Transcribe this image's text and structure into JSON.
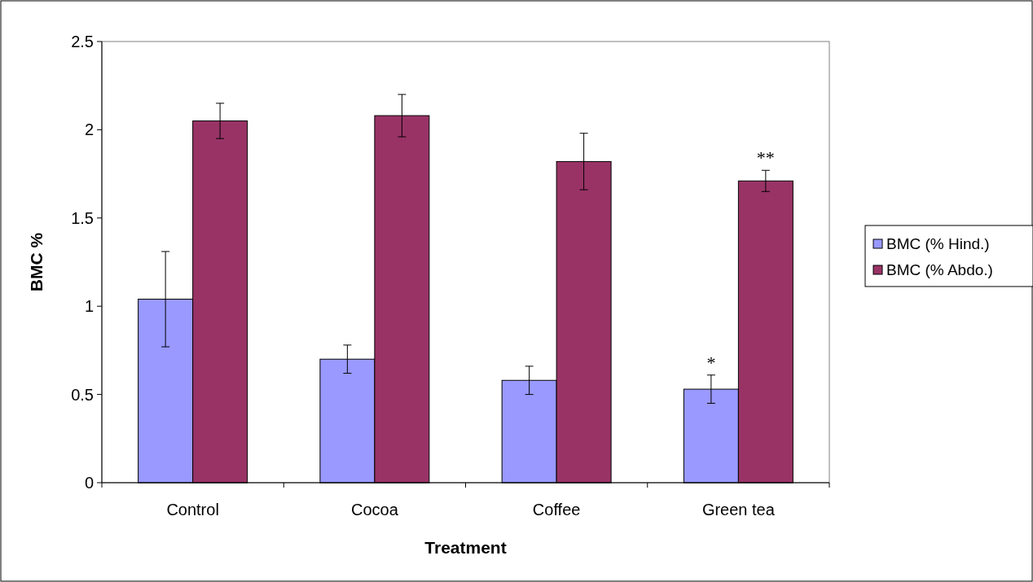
{
  "chart_data": {
    "type": "bar",
    "xlabel": "Treatment",
    "ylabel": "BMC %",
    "categories": [
      "Control",
      "Cocoa",
      "Coffee",
      "Green tea"
    ],
    "series": [
      {
        "name": "BMC (% Hind.)",
        "color": "#9999ff",
        "values": [
          1.04,
          0.7,
          0.58,
          0.53
        ],
        "errors": [
          0.27,
          0.08,
          0.08,
          0.08
        ]
      },
      {
        "name": "BMC (% Abdo.)",
        "color": "#993366",
        "values": [
          2.05,
          2.08,
          1.82,
          1.71
        ],
        "errors": [
          0.1,
          0.12,
          0.16,
          0.06
        ]
      }
    ],
    "ylim": [
      0,
      2.5
    ],
    "yticks": [
      0,
      0.5,
      1,
      1.5,
      2,
      2.5
    ],
    "grid": false,
    "legend": "right",
    "annotations": [
      "*",
      "**"
    ]
  }
}
